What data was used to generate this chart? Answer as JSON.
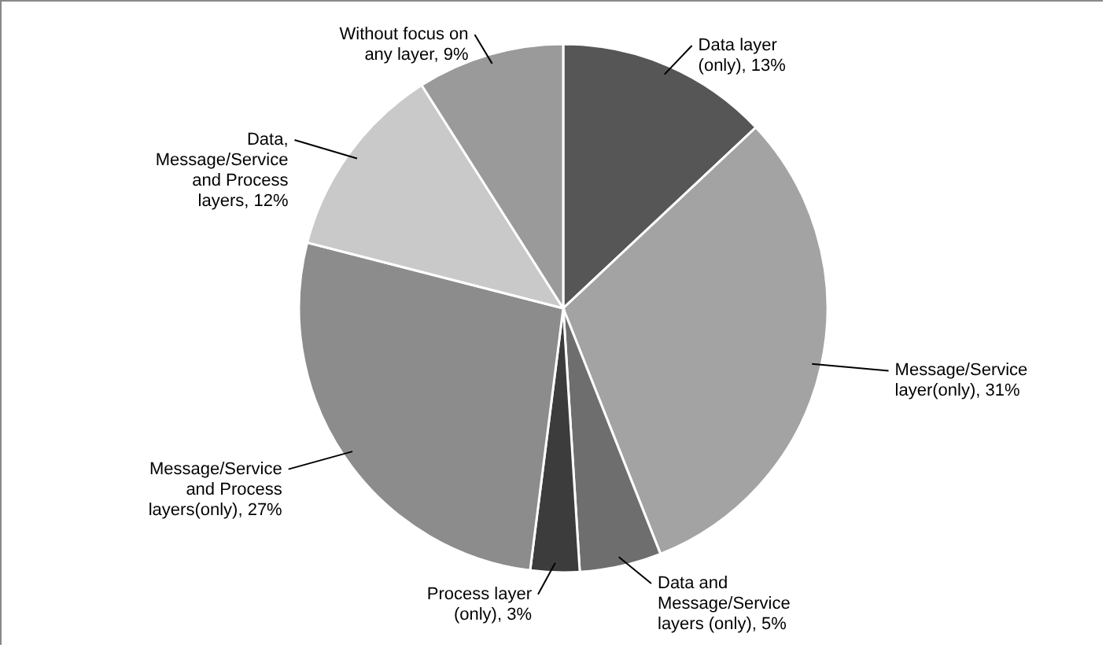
{
  "chart_data": {
    "type": "pie",
    "categories": [
      "Data layer (only)",
      "Message/Service layer(only)",
      "Data and Message/Service layers (only)",
      "Process layer (only)",
      "Message/Service and Process layers(only)",
      "Data, Message/Service and Process layers",
      "Without focus on any layer"
    ],
    "values": [
      13,
      31,
      5,
      3,
      27,
      12,
      9
    ],
    "value_labels": [
      "13%",
      "31%",
      "5%",
      "3%",
      "27%",
      "12%",
      "9%"
    ],
    "colors": [
      "#565656",
      "#a3a3a3",
      "#6e6e6e",
      "#3c3c3c",
      "#8c8c8c",
      "#c9c9c9",
      "#9a9a9a"
    ]
  }
}
